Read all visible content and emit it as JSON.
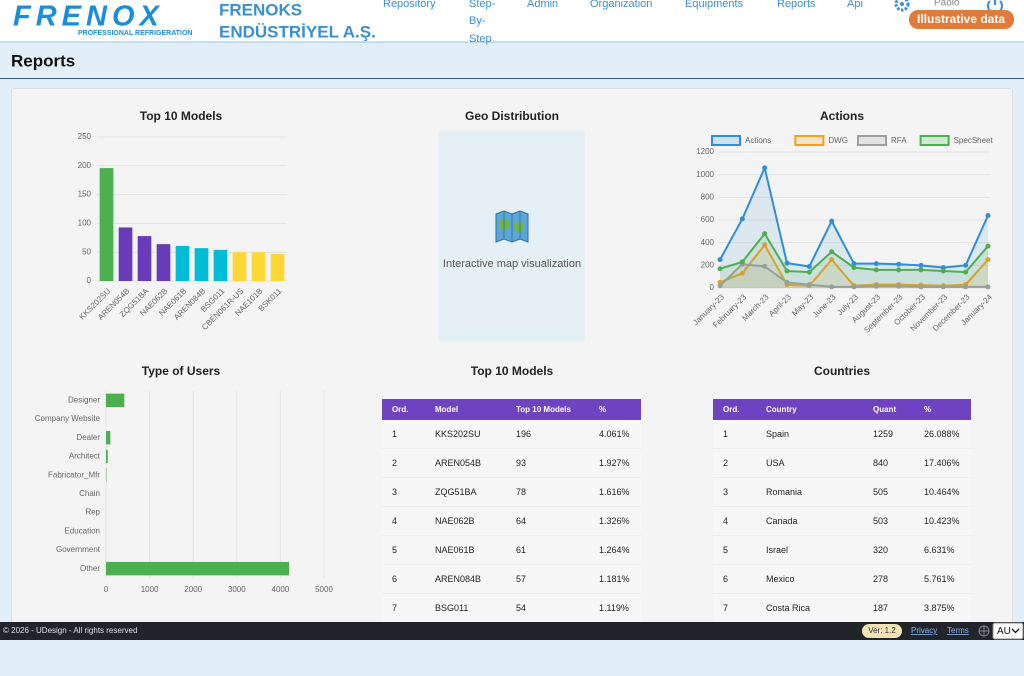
{
  "header": {
    "logo": "FRENOX",
    "tagline": "PROFESSIONAL REFRIGERATION",
    "company": [
      "FRENOKS",
      "ENDÜSTRİYEL A.Ş."
    ],
    "nav": [
      "Repository",
      [
        "Step-",
        "By-",
        "Step"
      ],
      "Admin",
      "Organization",
      "Equipments",
      "Reports",
      "Api"
    ],
    "user": "Paolo",
    "badge": "Illustrative data"
  },
  "page_title": "Reports",
  "chart_data": [
    {
      "type": "bar",
      "title": "Top 10 Models",
      "categories": [
        "KKS202SU",
        "AREN054B",
        "ZQG51BA",
        "NAE062B",
        "NAE061B",
        "AREN084B",
        "BSG011",
        "CBEN061R-US",
        "NAE101B",
        "BSK011"
      ],
      "values": [
        196,
        93,
        78,
        64,
        61,
        57,
        54,
        50,
        50,
        47
      ],
      "colors": [
        "#4caf50",
        "#6a3bb8",
        "#6a3bb8",
        "#6a3bb8",
        "#00bcd4",
        "#00bcd4",
        "#00bcd4",
        "#fdd835",
        "#fdd835",
        "#fdd835"
      ],
      "ylim": [
        0,
        250
      ],
      "yticks": [
        0,
        50,
        100,
        150,
        200,
        250
      ],
      "grid": true
    },
    {
      "type": "line",
      "title": "Actions",
      "categories": [
        "January-23",
        "February-23",
        "March-23",
        "April-23",
        "May-23",
        "June-23",
        "July-23",
        "August-23",
        "September-23",
        "October-23",
        "November-23",
        "December-23",
        "January-24"
      ],
      "series": [
        {
          "name": "Actions",
          "color": "#2e8fd8",
          "values": [
            250,
            610,
            1060,
            220,
            190,
            590,
            215,
            215,
            210,
            200,
            180,
            200,
            640
          ]
        },
        {
          "name": "DWG",
          "color": "#f0a020",
          "values": [
            50,
            130,
            380,
            30,
            20,
            250,
            20,
            30,
            30,
            25,
            20,
            30,
            250
          ]
        },
        {
          "name": "RFA",
          "color": "#a0a0a0",
          "values": [
            20,
            210,
            190,
            50,
            30,
            10,
            10,
            15,
            15,
            10,
            10,
            10,
            10
          ]
        },
        {
          "name": "SpecSheet",
          "color": "#4caf50",
          "values": [
            170,
            230,
            480,
            150,
            140,
            320,
            180,
            160,
            160,
            160,
            150,
            140,
            370
          ]
        }
      ],
      "ylim": [
        0,
        1200
      ],
      "yticks": [
        0,
        200,
        400,
        600,
        800,
        1000,
        1200
      ],
      "grid": true,
      "legend": "top",
      "fill": true
    },
    {
      "type": "hbar",
      "title": "Type of Users",
      "categories": [
        "Designer",
        "Company Website",
        "Dealer",
        "Architect",
        "Fabricator_Mfr",
        "Chain",
        "Rep",
        "Education",
        "Government",
        "Other"
      ],
      "values": [
        420,
        0,
        100,
        40,
        10,
        0,
        0,
        0,
        0,
        4200
      ],
      "color": "#4caf50",
      "xlim": [
        0,
        5000
      ],
      "xticks": [
        0,
        1000,
        2000,
        3000,
        4000,
        5000
      ],
      "grid": true
    }
  ],
  "geo": {
    "title": "Geo Distribution",
    "text": "Interactive map visualization"
  },
  "tables": [
    {
      "title": "Top 10 Models",
      "columns": [
        "Ord.",
        "Model",
        "Top 10 Models",
        "%"
      ],
      "rows": [
        [
          1,
          "KKS202SU",
          196,
          "4.061%"
        ],
        [
          2,
          "AREN054B",
          93,
          "1.927%"
        ],
        [
          3,
          "ZQG51BA",
          78,
          "1.616%"
        ],
        [
          4,
          "NAE062B",
          64,
          "1.326%"
        ],
        [
          5,
          "NAE061B",
          61,
          "1.264%"
        ],
        [
          6,
          "AREN084B",
          57,
          "1.181%"
        ],
        [
          7,
          "BSG011",
          54,
          "1.119%"
        ]
      ]
    },
    {
      "title": "Countries",
      "columns": [
        "Ord.",
        "Country",
        "Quant",
        "%"
      ],
      "rows": [
        [
          1,
          "Spain",
          1259,
          "26.088%"
        ],
        [
          2,
          "USA",
          840,
          "17.406%"
        ],
        [
          3,
          "Romania",
          505,
          "10.464%"
        ],
        [
          4,
          "Canada",
          503,
          "10.423%"
        ],
        [
          5,
          "Israel",
          320,
          "6.631%"
        ],
        [
          6,
          "Mexico",
          278,
          "5.761%"
        ],
        [
          7,
          "Costa Rica",
          187,
          "3.875%"
        ]
      ]
    }
  ],
  "footer": {
    "copyright": "© 2026 - UDesign - All rights reserved",
    "version": "Ver: 1.2",
    "links": [
      "Privacy",
      "Terms"
    ],
    "locale": "AU"
  }
}
